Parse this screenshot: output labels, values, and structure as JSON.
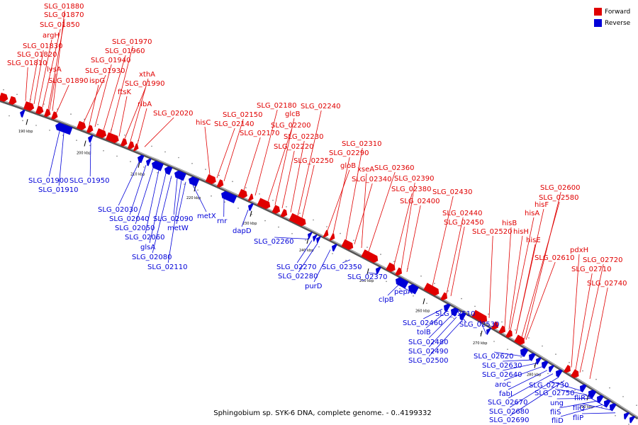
{
  "legend": {
    "forward_label": "Forward",
    "reverse_label": "Reverse",
    "forward_color": "#e00000",
    "reverse_color": "#0000d8"
  },
  "caption": "Sphingobium sp. SYK-6 DNA, complete genome. - 0..4199332",
  "ticks": [
    "190 kbp",
    "200 kbp",
    "210 kbp",
    "220 kbp",
    "230 kbp",
    "240 kbp",
    "250 kbp",
    "260 kbp",
    "270 kbp",
    "280 kbp",
    "290 kbp"
  ],
  "forward_genes": [
    "SLG_01810",
    "SLG_01820",
    "SLG_01830",
    "argH",
    "SLG_01850",
    "SLG_01870",
    "SLG_01880",
    "lysA",
    "SLG_01890",
    "SLG_01930",
    "ispG",
    "SLG_01940",
    "SLG_01960",
    "SLG_01970",
    "ftsK",
    "SLG_01990",
    "xthA",
    "ribA",
    "SLG_02020",
    "hisC",
    "SLG_02140",
    "SLG_02150",
    "SLG_02170",
    "SLG_02180",
    "SLG_02200",
    "glcB",
    "SLG_02220",
    "SLG_02230",
    "SLG_02240",
    "SLG_02250",
    "gloB",
    "SLG_02290",
    "SLG_02310",
    "SLG_02340",
    "xseA",
    "SLG_02360",
    "SLG_02380",
    "SLG_02390",
    "SLG_02400",
    "SLG_02430",
    "SLG_02440",
    "SLG_02450",
    "SLG_02520",
    "hisE",
    "hisH",
    "hisB",
    "hisA",
    "hisF",
    "SLG_02580",
    "SLG_02600",
    "SLG_02610",
    "pdxH",
    "SLG_02710",
    "SLG_02720",
    "SLG_02740"
  ],
  "reverse_genes": [
    "SLG_01900",
    "SLG_01910",
    "SLG_01950",
    "SLG_02030",
    "SLG_02040",
    "SLG_02050",
    "SLG_02060",
    "glsA",
    "SLG_02080",
    "SLG_02110",
    "SLG_02090",
    "metW",
    "metX",
    "rnr",
    "dapD",
    "SLG_02260",
    "SLG_02270",
    "SLG_02280",
    "purD",
    "SLG_02350",
    "SLG_02370",
    "clpB",
    "pepA",
    "SLG_02460",
    "tolB",
    "SLG_02480",
    "SLG_02490",
    "SLG_02500",
    "SLG_02510",
    "SLG_02530",
    "SLG_02620",
    "SLG_02630",
    "SLG_02640",
    "aroC",
    "fabI",
    "SLG_02670",
    "SLG_02680",
    "SLG_02690",
    "SLG_02730",
    "SLG_02750",
    "ung",
    "fliS",
    "fliD",
    "fliR",
    "fliQ",
    "fliP"
  ]
}
